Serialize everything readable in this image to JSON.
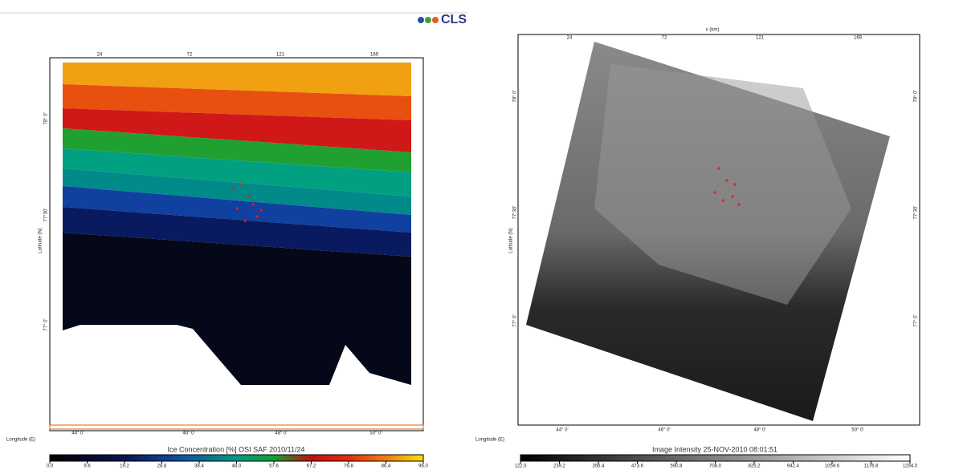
{
  "logo": "CLS",
  "left_panel": {
    "x_axis_ticks": [
      "24",
      "72",
      "121",
      "169"
    ],
    "latitude_ticks": [
      "78° 0'",
      "77°30'",
      "77° 0'"
    ],
    "longitude_ticks": [
      "44° 0'",
      "46° 0'",
      "48° 0'",
      "50° 0'"
    ],
    "latitude_label": "Latitude (N)",
    "longitude_label": "Longitude (E)",
    "colorbar": {
      "title": "Ice Concentration [%] OSI SAF 2010/11/24",
      "range": [
        0,
        96
      ],
      "ticks": [
        {
          "value": 0,
          "label": "0.0"
        },
        9.6,
        19.2,
        28.8,
        38.4,
        {
          "value": 48,
          "label": "48.0"
        },
        57.6,
        67.2,
        76.8,
        86.4,
        {
          "value": 96,
          "label": "96.0"
        }
      ]
    }
  },
  "right_panel": {
    "x_axis_label": "x (km)",
    "x_axis_ticks": [
      "24",
      "72",
      "121",
      "169"
    ],
    "latitude_ticks": [
      "78° 0'",
      "77°30'",
      "77° 0'"
    ],
    "longitude_ticks": [
      "44° 0'",
      "46° 0'",
      "48° 0'",
      "50° 0'"
    ],
    "latitude_label": "Latitude (N)",
    "longitude_label": "Longitude (E)",
    "colorbar": {
      "title": "Image Intensity 25-NOV-2010 08:01:51",
      "range": [
        122,
        1294
      ],
      "ticks": [
        {
          "value": 122,
          "label": "122.0"
        },
        239.2,
        356.4,
        473.6,
        590.8,
        {
          "value": 708,
          "label": "708.0"
        },
        825.2,
        942.4,
        1059.6,
        1176.8,
        {
          "value": 1294,
          "label": "1294.0"
        }
      ]
    }
  }
}
